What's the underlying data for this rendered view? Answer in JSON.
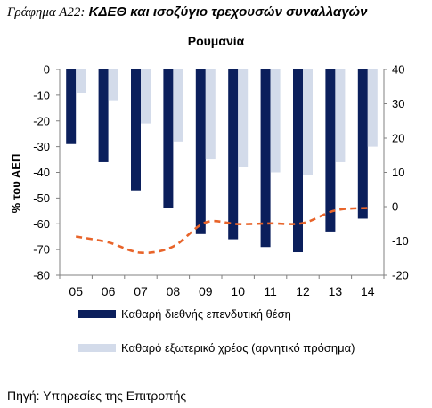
{
  "figure": {
    "prefix": "Γράφημα Α22:",
    "title": "ΚΔΕΘ και ισοζύγιο τρεχουσών συναλλαγών"
  },
  "colors": {
    "niip": "#0b1f5c",
    "ned": "#d3dbea",
    "ca": "#e8642a",
    "axis": "#808080"
  },
  "chart_data": {
    "type": "bar",
    "title": "Ρουμανία",
    "ylabel": "% του ΑΕΠ",
    "categories": [
      "05",
      "06",
      "07",
      "08",
      "09",
      "10",
      "11",
      "12",
      "13",
      "14"
    ],
    "ylim_left": [
      -80,
      0
    ],
    "yticks_left": [
      0,
      -10,
      -20,
      -30,
      -40,
      -50,
      -60,
      -70,
      -80
    ],
    "ylim_right": [
      -20,
      40
    ],
    "yticks_right": [
      40,
      30,
      20,
      10,
      0,
      -10,
      -20
    ],
    "grid": false,
    "legend_position": "bottom",
    "series": [
      {
        "name": "Καθαρή διεθνής επενδυτική θέση",
        "kind": "bar",
        "axis": "left",
        "color_key": "niip",
        "values": [
          -29,
          -36,
          -47,
          -54,
          -64,
          -66,
          -69,
          -71,
          -63,
          -58
        ]
      },
      {
        "name": "Καθαρό εξωτερικό χρέος (αρνητικό πρόσημα)",
        "kind": "bar",
        "axis": "left",
        "color_key": "ned",
        "values": [
          -9,
          -12,
          -21,
          -28,
          -35,
          -38,
          -40,
          -41,
          -36,
          -30
        ]
      },
      {
        "kind": "line",
        "axis": "right",
        "style": "dashed",
        "color_key": "ca",
        "values": [
          -8.7,
          -10.4,
          -13.4,
          -11.6,
          -4.6,
          -5.1,
          -4.9,
          -4.8,
          -1.1,
          -0.4
        ]
      }
    ]
  },
  "legend": [
    {
      "label": "Καθαρή διεθνής επενδυτική θέση"
    },
    {
      "label": "Καθαρό εξωτερικό χρέος (αρνητικό πρόσημα)"
    }
  ],
  "source": "Πηγή: Υπηρεσίες της Επιτροπής"
}
